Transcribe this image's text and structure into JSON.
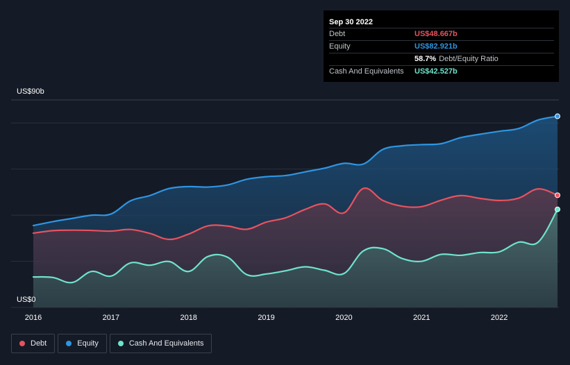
{
  "tooltip": {
    "date": "Sep 30 2022",
    "rows": [
      {
        "label": "Debt",
        "value": "US$48.667b"
      },
      {
        "label": "Equity",
        "value": "US$82.921b"
      },
      {
        "label": "",
        "value": "58.7%",
        "extra": "Debt/Equity Ratio"
      },
      {
        "label": "Cash And Equivalents",
        "value": "US$42.527b"
      }
    ]
  },
  "colors": {
    "debt": "#e8525f",
    "equity": "#2f95e3",
    "cash": "#6fe3cc",
    "background": "#151b26",
    "grid": "#2c323c"
  },
  "legend": [
    {
      "label": "Debt",
      "series": "debt"
    },
    {
      "label": "Equity",
      "series": "equity"
    },
    {
      "label": "Cash And Equivalents",
      "series": "cash"
    }
  ],
  "chart_data": {
    "type": "area",
    "ylabel_top": "US$90b",
    "ylabel_bottom": "US$0",
    "ylim": [
      0,
      90
    ],
    "xlim": [
      2016,
      2022.75
    ],
    "x_ticks": [
      2016,
      2017,
      2018,
      2019,
      2020,
      2021,
      2022
    ],
    "y_gridlines": [
      0,
      20,
      40,
      60,
      80,
      90
    ],
    "legend_position": "bottom-left",
    "series": [
      {
        "name": "Equity",
        "key": "equity",
        "points": [
          [
            2016,
            35.5
          ],
          [
            2016.25,
            37.2
          ],
          [
            2016.5,
            38.6
          ],
          [
            2016.75,
            40.0
          ],
          [
            2017,
            40.5
          ],
          [
            2017.25,
            46.2
          ],
          [
            2017.5,
            48.5
          ],
          [
            2017.75,
            51.6
          ],
          [
            2018,
            52.4
          ],
          [
            2018.25,
            52.2
          ],
          [
            2018.5,
            53.1
          ],
          [
            2018.75,
            55.6
          ],
          [
            2019,
            56.7
          ],
          [
            2019.25,
            57.2
          ],
          [
            2019.5,
            58.8
          ],
          [
            2019.75,
            60.4
          ],
          [
            2020,
            62.5
          ],
          [
            2020.25,
            62.2
          ],
          [
            2020.5,
            68.5
          ],
          [
            2020.75,
            70.1
          ],
          [
            2021,
            70.6
          ],
          [
            2021.25,
            71.0
          ],
          [
            2021.5,
            73.6
          ],
          [
            2021.75,
            75.1
          ],
          [
            2022,
            76.4
          ],
          [
            2022.25,
            77.6
          ],
          [
            2022.5,
            81.3
          ],
          [
            2022.75,
            82.921
          ]
        ]
      },
      {
        "name": "Debt",
        "key": "debt",
        "points": [
          [
            2016,
            32.2
          ],
          [
            2016.25,
            33.3
          ],
          [
            2016.5,
            33.5
          ],
          [
            2016.75,
            33.4
          ],
          [
            2017,
            33.1
          ],
          [
            2017.25,
            33.8
          ],
          [
            2017.5,
            32.1
          ],
          [
            2017.75,
            29.5
          ],
          [
            2018,
            31.8
          ],
          [
            2018.25,
            35.4
          ],
          [
            2018.5,
            35.3
          ],
          [
            2018.75,
            33.9
          ],
          [
            2019,
            37.0
          ],
          [
            2019.25,
            38.9
          ],
          [
            2019.5,
            42.5
          ],
          [
            2019.75,
            44.9
          ],
          [
            2020,
            41.0
          ],
          [
            2020.25,
            51.6
          ],
          [
            2020.5,
            46.4
          ],
          [
            2020.75,
            43.9
          ],
          [
            2021,
            43.7
          ],
          [
            2021.25,
            46.5
          ],
          [
            2021.5,
            48.5
          ],
          [
            2021.75,
            47.3
          ],
          [
            2022,
            46.4
          ],
          [
            2022.25,
            47.4
          ],
          [
            2022.5,
            51.4
          ],
          [
            2022.75,
            48.667
          ]
        ]
      },
      {
        "name": "Cash And Equivalents",
        "key": "cash",
        "points": [
          [
            2016,
            13.2
          ],
          [
            2016.25,
            13.0
          ],
          [
            2016.5,
            10.8
          ],
          [
            2016.75,
            15.6
          ],
          [
            2017,
            13.6
          ],
          [
            2017.25,
            19.3
          ],
          [
            2017.5,
            18.3
          ],
          [
            2017.75,
            19.9
          ],
          [
            2018,
            15.6
          ],
          [
            2018.25,
            22.1
          ],
          [
            2018.5,
            21.8
          ],
          [
            2018.75,
            14.2
          ],
          [
            2019,
            14.5
          ],
          [
            2019.25,
            15.9
          ],
          [
            2019.5,
            17.6
          ],
          [
            2019.75,
            16.1
          ],
          [
            2020,
            14.7
          ],
          [
            2020.25,
            24.5
          ],
          [
            2020.5,
            25.5
          ],
          [
            2020.75,
            21.2
          ],
          [
            2021,
            20.0
          ],
          [
            2021.25,
            23.0
          ],
          [
            2021.5,
            22.6
          ],
          [
            2021.75,
            23.8
          ],
          [
            2022,
            24.1
          ],
          [
            2022.25,
            28.3
          ],
          [
            2022.5,
            28.3
          ],
          [
            2022.75,
            42.527
          ]
        ]
      }
    ]
  }
}
